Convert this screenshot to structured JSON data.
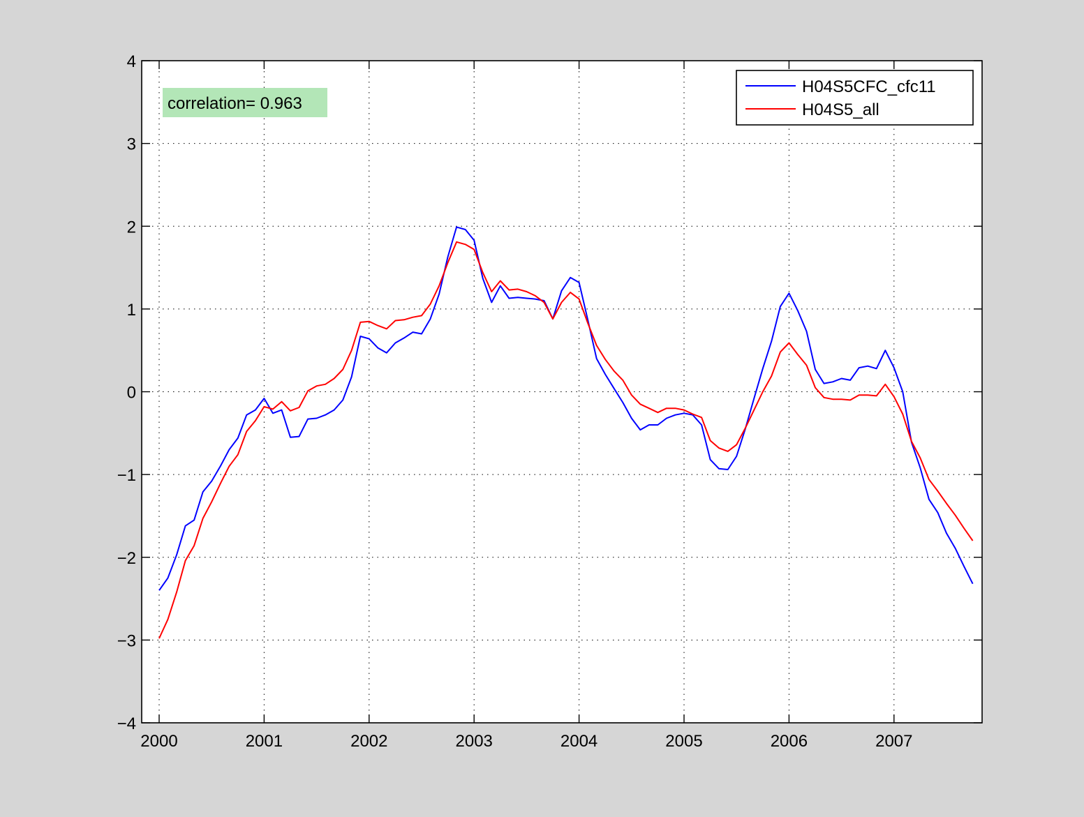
{
  "annotation": {
    "text": "correlation= 0.963",
    "bg_color": "#b3e6b7"
  },
  "colors": {
    "figure_background": "#d6d6d6",
    "axes_background": "#ffffff",
    "series_1": "#0000ff",
    "series_2": "#ff0000"
  },
  "chart_data": {
    "type": "line",
    "title": "",
    "xlabel": "",
    "ylabel": "",
    "xlim": [
      2000,
      2007.83
    ],
    "ylim": [
      -4,
      4
    ],
    "x_ticks": [
      2000,
      2001,
      2002,
      2003,
      2004,
      2005,
      2006,
      2007
    ],
    "x_tick_labels": [
      "2000",
      "2001",
      "2002",
      "2003",
      "2004",
      "2005",
      "2006",
      "2007"
    ],
    "y_ticks": [
      -4,
      -3,
      -2,
      -1,
      0,
      1,
      2,
      3,
      4
    ],
    "y_tick_labels": [
      "−4",
      "−3",
      "−2",
      "−1",
      "0",
      "1",
      "2",
      "3",
      "4"
    ],
    "grid": true,
    "legend_position": "top-right",
    "x_start": 2000,
    "x_step": 0.083333,
    "series": [
      {
        "name": "H04S5CFC_cfc11",
        "color": "#0000ff",
        "values": [
          -2.4,
          -2.25,
          -1.97,
          -1.62,
          -1.55,
          -1.21,
          -1.08,
          -0.9,
          -0.7,
          -0.56,
          -0.28,
          -0.22,
          -0.08,
          -0.26,
          -0.22,
          -0.55,
          -0.54,
          -0.33,
          -0.32,
          -0.28,
          -0.22,
          -0.1,
          0.18,
          0.67,
          0.64,
          0.53,
          0.47,
          0.59,
          0.65,
          0.72,
          0.7,
          0.88,
          1.18,
          1.63,
          1.99,
          1.96,
          1.83,
          1.37,
          1.08,
          1.28,
          1.13,
          1.14,
          1.13,
          1.12,
          1.1,
          0.88,
          1.22,
          1.38,
          1.32,
          0.87,
          0.4,
          0.21,
          0.04,
          -0.13,
          -0.32,
          -0.46,
          -0.4,
          -0.4,
          -0.32,
          -0.28,
          -0.26,
          -0.28,
          -0.4,
          -0.82,
          -0.93,
          -0.94,
          -0.78,
          -0.45,
          -0.08,
          0.28,
          0.61,
          1.03,
          1.19,
          0.98,
          0.73,
          0.27,
          0.1,
          0.12,
          0.16,
          0.14,
          0.29,
          0.31,
          0.28,
          0.5,
          0.29,
          0.0,
          -0.61,
          -0.92,
          -1.3,
          -1.46,
          -1.71,
          -1.89,
          -2.11,
          -2.32
        ]
      },
      {
        "name": "H04S5_all",
        "color": "#ff0000",
        "values": [
          -2.98,
          -2.75,
          -2.42,
          -2.04,
          -1.86,
          -1.53,
          -1.33,
          -1.11,
          -0.9,
          -0.76,
          -0.48,
          -0.35,
          -0.18,
          -0.21,
          -0.12,
          -0.23,
          -0.19,
          0.01,
          0.07,
          0.09,
          0.16,
          0.27,
          0.5,
          0.84,
          0.85,
          0.8,
          0.76,
          0.86,
          0.87,
          0.9,
          0.92,
          1.06,
          1.28,
          1.56,
          1.81,
          1.78,
          1.72,
          1.44,
          1.21,
          1.34,
          1.23,
          1.24,
          1.21,
          1.16,
          1.08,
          0.88,
          1.08,
          1.2,
          1.12,
          0.83,
          0.56,
          0.39,
          0.25,
          0.14,
          -0.04,
          -0.15,
          -0.2,
          -0.25,
          -0.2,
          -0.2,
          -0.22,
          -0.27,
          -0.31,
          -0.59,
          -0.68,
          -0.72,
          -0.64,
          -0.44,
          -0.22,
          0.0,
          0.19,
          0.48,
          0.59,
          0.45,
          0.32,
          0.05,
          -0.07,
          -0.09,
          -0.09,
          -0.1,
          -0.04,
          -0.04,
          -0.05,
          0.09,
          -0.06,
          -0.27,
          -0.6,
          -0.8,
          -1.06,
          -1.2,
          -1.35,
          -1.49,
          -1.65,
          -1.8
        ]
      }
    ]
  }
}
